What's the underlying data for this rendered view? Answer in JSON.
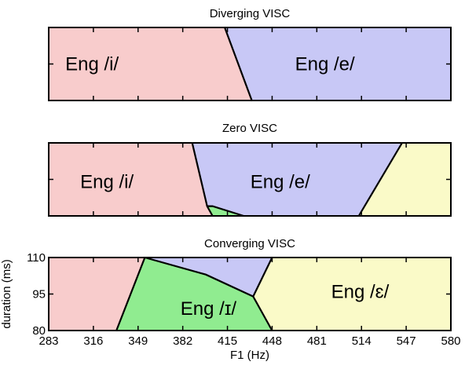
{
  "chart_data": [
    {
      "type": "area",
      "title": "Diverging VISC",
      "xlim": [
        283,
        580
      ],
      "ylim": [
        80,
        110
      ],
      "colors": {
        "Eng /i/": "#f8cccc",
        "Eng /e/": "#c8c8f6"
      },
      "regions": [
        {
          "label": "Eng /i/",
          "color": "#f8cccc",
          "label_at": [
            315,
            95
          ],
          "polygon": [
            [
              283,
              80
            ],
            [
              283,
              110
            ],
            [
              413,
              110
            ],
            [
              433,
              80
            ]
          ]
        },
        {
          "label": "Eng /e/",
          "color": "#c8c8f6",
          "label_at": [
            487,
            95
          ],
          "polygon": [
            [
              413,
              110
            ],
            [
              580,
              110
            ],
            [
              580,
              80
            ],
            [
              433,
              80
            ]
          ]
        }
      ],
      "boundaries": [
        [
          [
            413,
            110
          ],
          [
            433,
            80
          ]
        ]
      ]
    },
    {
      "type": "area",
      "title": "Zero VISC",
      "xlim": [
        283,
        580
      ],
      "ylim": [
        80,
        110
      ],
      "colors": {
        "Eng /i/": "#f8cccc",
        "Eng /e/": "#c8c8f6",
        "green": "#90ec90",
        "yellow": "#fafac8"
      },
      "regions": [
        {
          "label": "Eng /i/",
          "color": "#f8cccc",
          "label_at": [
            326,
            94
          ],
          "polygon": [
            [
              283,
              80
            ],
            [
              283,
              110
            ],
            [
              389,
              110
            ],
            [
              400,
              84
            ],
            [
              404,
              80
            ]
          ]
        },
        {
          "label": "Eng /e/",
          "color": "#c8c8f6",
          "label_at": [
            454,
            94
          ],
          "polygon": [
            [
              389,
              110
            ],
            [
              544,
              110
            ],
            [
              512,
              80
            ],
            [
              427,
              80
            ],
            [
              404,
              84
            ],
            [
              400,
              84
            ]
          ]
        },
        {
          "label": "",
          "color": "#90ec90",
          "polygon": [
            [
              404,
              80
            ],
            [
              400,
              84
            ],
            [
              404,
              84
            ],
            [
              427,
              80
            ]
          ]
        },
        {
          "label": "",
          "color": "#fafac8",
          "polygon": [
            [
              544,
              110
            ],
            [
              580,
              110
            ],
            [
              580,
              80
            ],
            [
              512,
              80
            ]
          ]
        }
      ],
      "boundaries": [
        [
          [
            389,
            110
          ],
          [
            400,
            84
          ],
          [
            404,
            80
          ]
        ],
        [
          [
            400,
            84
          ],
          [
            404,
            84
          ],
          [
            427,
            80
          ]
        ],
        [
          [
            544,
            110
          ],
          [
            512,
            80
          ]
        ]
      ]
    },
    {
      "type": "area",
      "title": "Converging VISC",
      "xlim": [
        283,
        580
      ],
      "ylim": [
        80,
        110
      ],
      "xlabel": "F1 (Hz)",
      "ylabel": "duration (ms)",
      "xticks": [
        "283",
        "316",
        "349",
        "382",
        "415",
        "448",
        "481",
        "514",
        "547",
        "580"
      ],
      "yticks": [
        "80",
        "95",
        "110"
      ],
      "colors": {
        "Eng /ɪ/": "#90ec90",
        "Eng /ɛ/": "#fafac8",
        "pink": "#f8cccc",
        "blue": "#c8c8f6"
      },
      "regions": [
        {
          "label": "",
          "color": "#f8cccc",
          "polygon": [
            [
              283,
              80
            ],
            [
              283,
              110
            ],
            [
              354,
              110
            ],
            [
              333,
              80
            ]
          ]
        },
        {
          "label": "",
          "color": "#c8c8f6",
          "polygon": [
            [
              354,
              110
            ],
            [
              448,
              110
            ],
            [
              434,
              94
            ],
            [
              399,
              103
            ]
          ]
        },
        {
          "label": "Eng /ɪ/",
          "color": "#90ec90",
          "label_at": [
            401,
            89
          ],
          "polygon": [
            [
              354,
              110
            ],
            [
              399,
              103
            ],
            [
              434,
              94
            ],
            [
              448,
              80
            ],
            [
              333,
              80
            ]
          ]
        },
        {
          "label": "Eng /ɛ/",
          "color": "#fafac8",
          "label_at": [
            513,
            96
          ],
          "polygon": [
            [
              448,
              110
            ],
            [
              580,
              110
            ],
            [
              580,
              80
            ],
            [
              448,
              80
            ],
            [
              434,
              94
            ]
          ]
        }
      ],
      "boundaries": [
        [
          [
            354,
            110
          ],
          [
            333,
            80
          ]
        ],
        [
          [
            354,
            110
          ],
          [
            399,
            103
          ],
          [
            434,
            94
          ]
        ],
        [
          [
            448,
            110
          ],
          [
            434,
            94
          ],
          [
            448,
            80
          ]
        ]
      ]
    }
  ]
}
